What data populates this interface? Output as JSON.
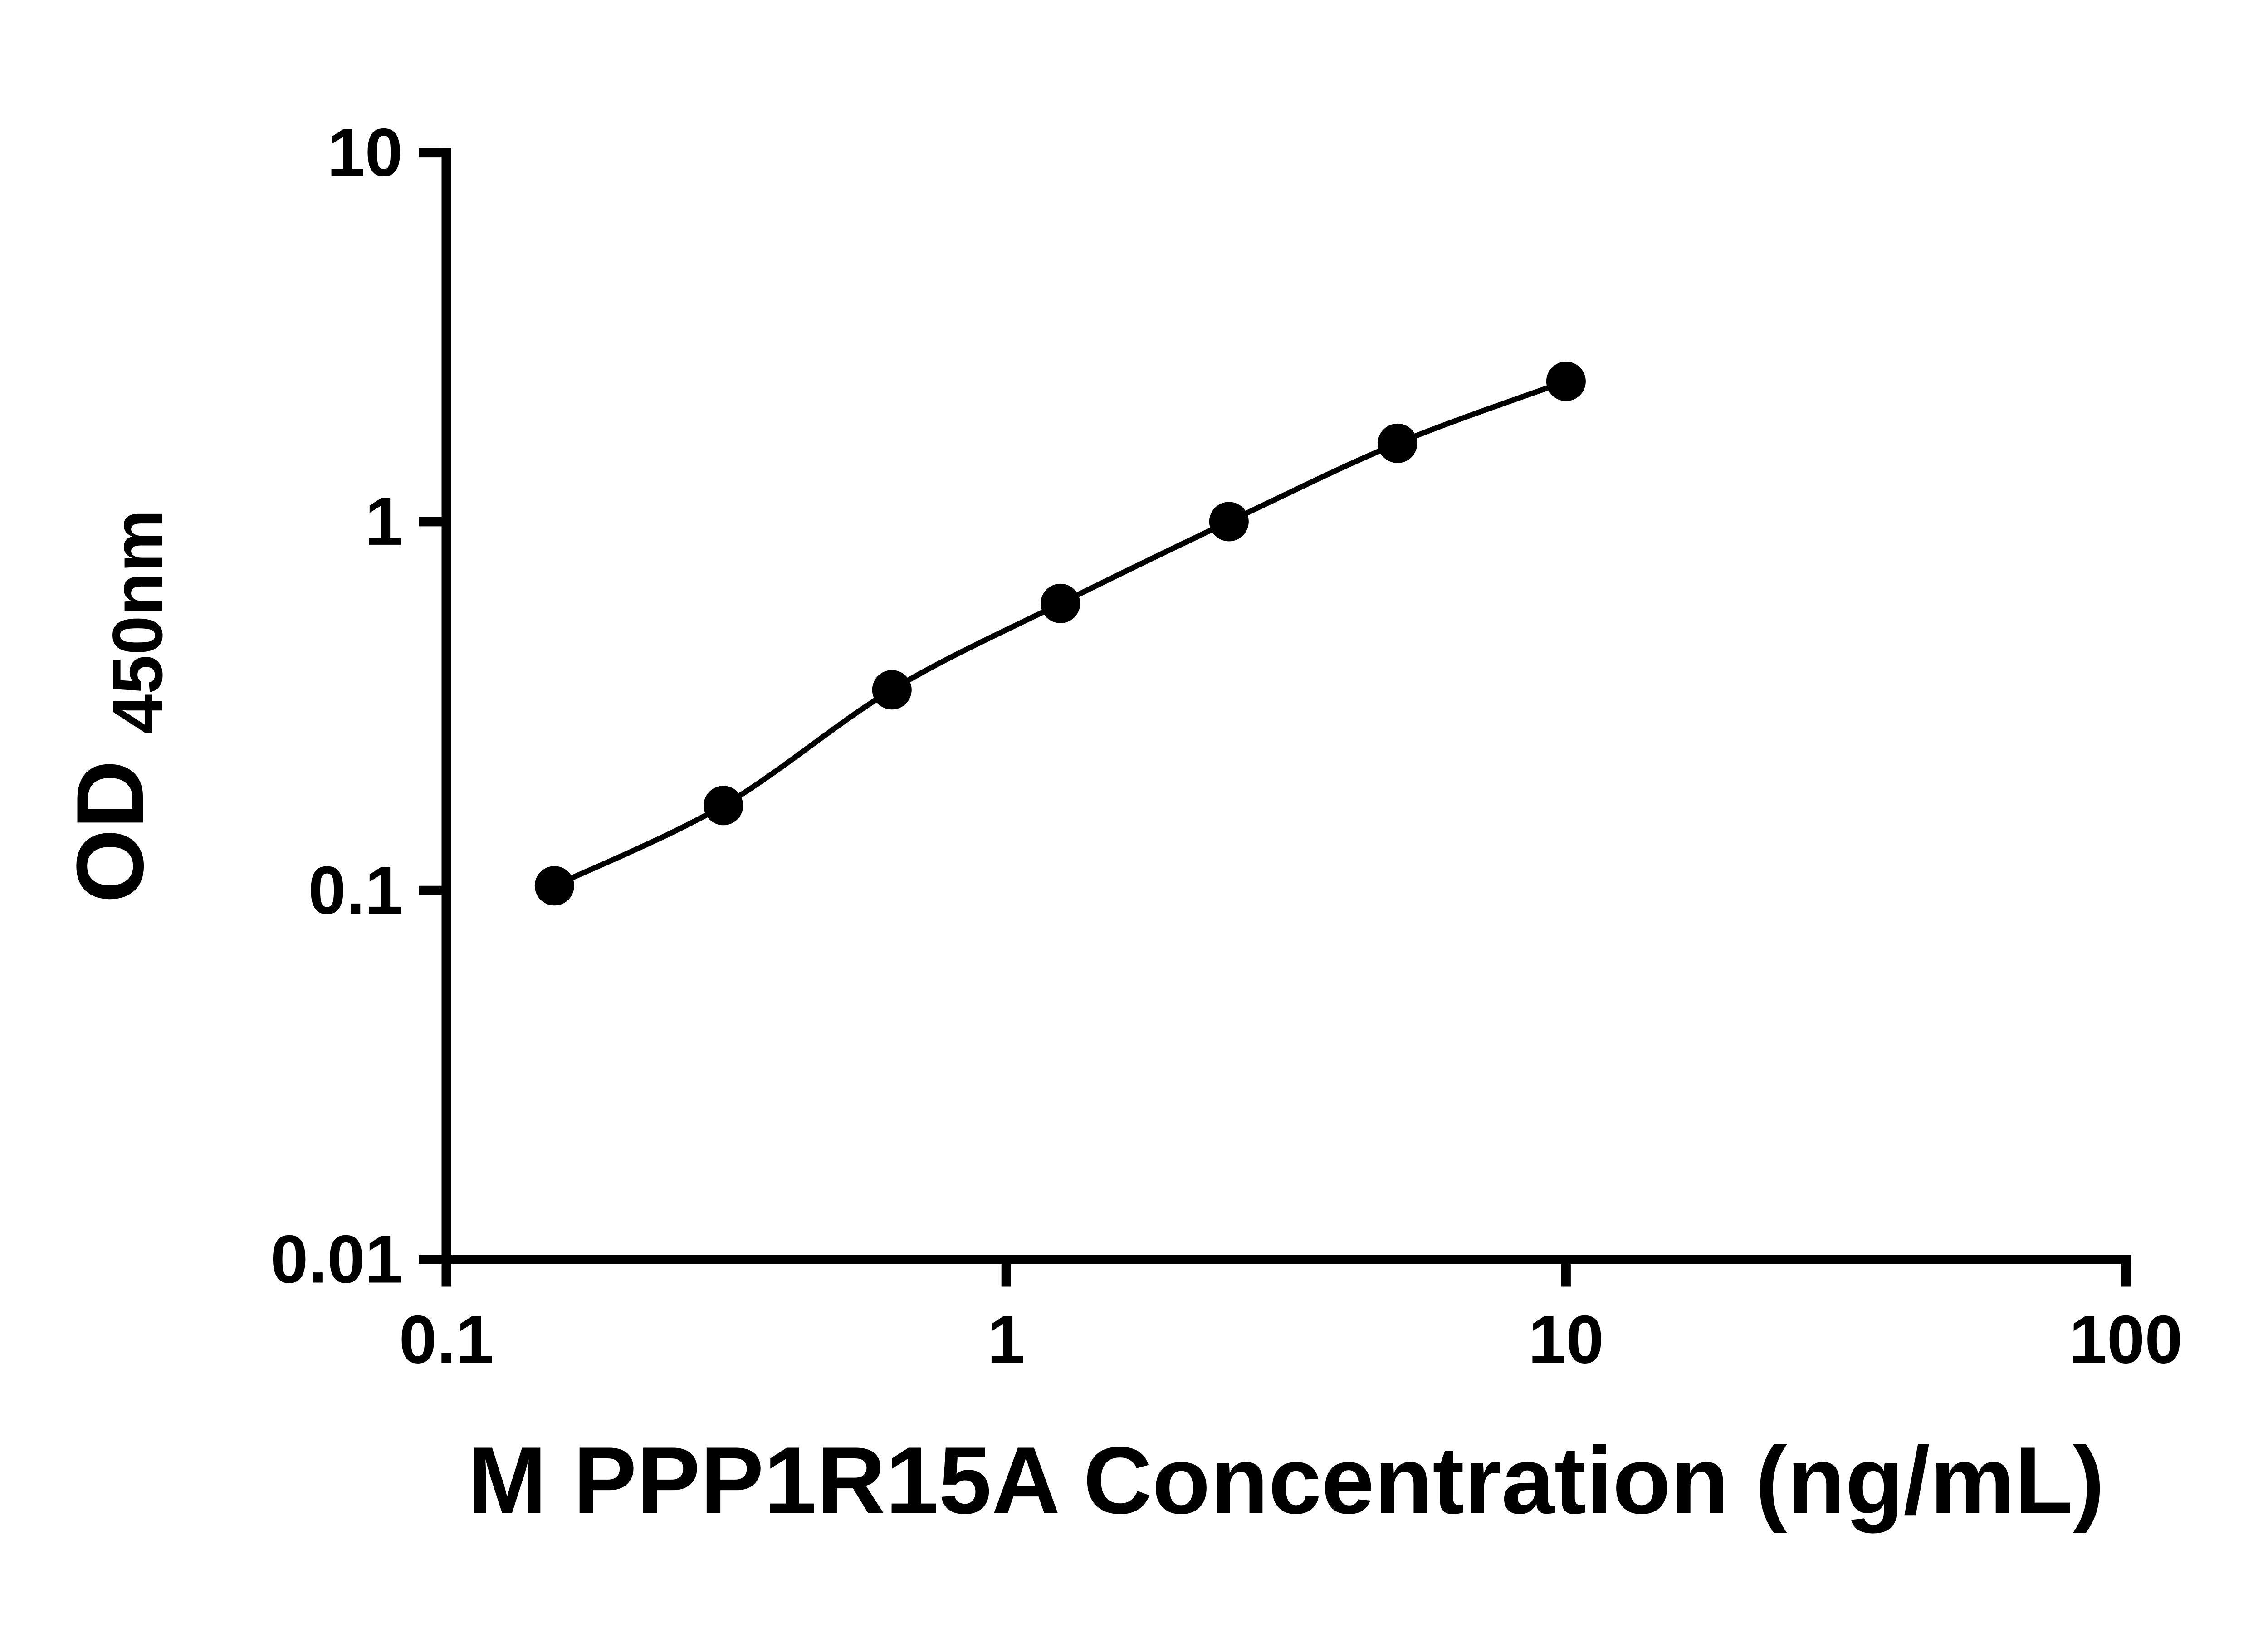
{
  "chart_data": {
    "type": "scatter",
    "subtype": "standard-curve-with-smooth-line",
    "title": "",
    "xlabel": "M PPP1R15A Concentration (ng/mL)",
    "ylabel_main": "OD",
    "ylabel_sub": "450nm",
    "x_scale": "log",
    "y_scale": "log",
    "xlim": [
      0.1,
      100
    ],
    "ylim": [
      0.01,
      10
    ],
    "grid": false,
    "legend": null,
    "x": [
      0.156,
      0.3125,
      0.625,
      1.25,
      2.5,
      5,
      10
    ],
    "y": [
      0.103,
      0.17,
      0.35,
      0.6,
      1.0,
      1.63,
      2.4
    ],
    "x_ticks": [
      {
        "value": 0.1,
        "label": "0.1"
      },
      {
        "value": 1,
        "label": "1"
      },
      {
        "value": 10,
        "label": "10"
      },
      {
        "value": 100,
        "label": "100"
      }
    ],
    "y_ticks": [
      {
        "value": 0.01,
        "label": "0.01"
      },
      {
        "value": 0.1,
        "label": "0.1"
      },
      {
        "value": 1,
        "label": "1"
      },
      {
        "value": 10,
        "label": "10"
      }
    ],
    "colors": {
      "axis": "#000000",
      "marker": "#000000",
      "line": "#000000",
      "text": "#000000",
      "background": "#ffffff"
    }
  }
}
